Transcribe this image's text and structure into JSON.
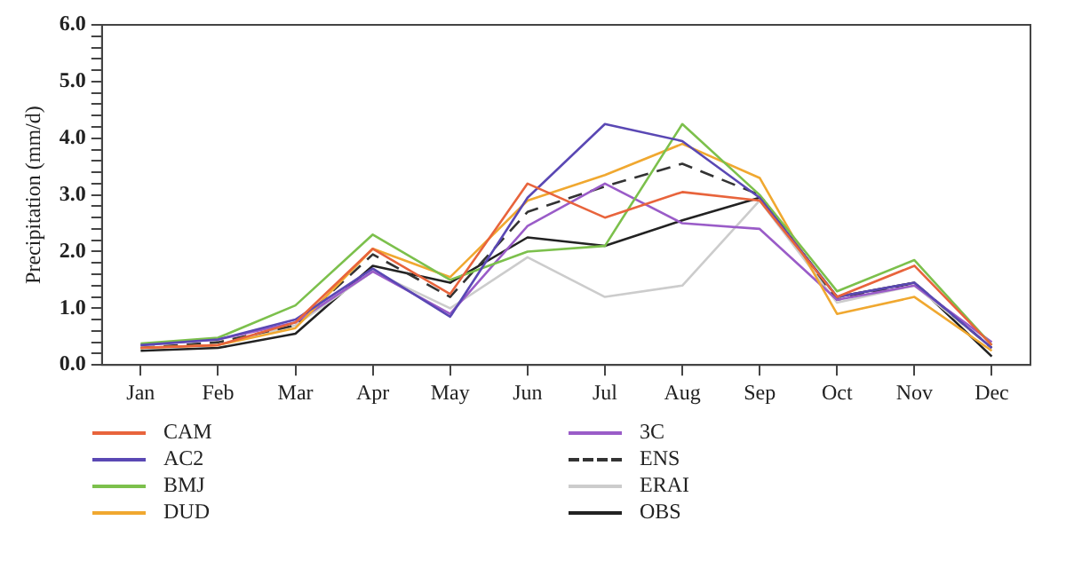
{
  "chart_data": {
    "type": "line",
    "ylabel": "Precipitation (mm/d)",
    "categories": [
      "Jan",
      "Feb",
      "Mar",
      "Apr",
      "May",
      "Jun",
      "Jul",
      "Aug",
      "Sep",
      "Oct",
      "Nov",
      "Dec"
    ],
    "ylim": [
      0,
      6
    ],
    "yticks": [
      {
        "value": 0,
        "label": "0.0"
      },
      {
        "value": 0.2,
        "label": null
      },
      {
        "value": 0.4,
        "label": null
      },
      {
        "value": 0.6,
        "label": null
      },
      {
        "value": 0.8,
        "label": null
      },
      {
        "value": 1,
        "label": "1.0"
      },
      {
        "value": 1.2,
        "label": null
      },
      {
        "value": 1.4,
        "label": null
      },
      {
        "value": 1.6,
        "label": null
      },
      {
        "value": 1.8,
        "label": null
      },
      {
        "value": 2,
        "label": "2.0"
      },
      {
        "value": 2.2,
        "label": null
      },
      {
        "value": 2.4,
        "label": null
      },
      {
        "value": 2.6,
        "label": null
      },
      {
        "value": 2.8,
        "label": null
      },
      {
        "value": 3,
        "label": "3.0"
      },
      {
        "value": 3.2,
        "label": null
      },
      {
        "value": 3.4,
        "label": null
      },
      {
        "value": 3.6,
        "label": null
      },
      {
        "value": 3.8,
        "label": null
      },
      {
        "value": 4,
        "label": "4.0"
      },
      {
        "value": 4.2,
        "label": null
      },
      {
        "value": 4.4,
        "label": null
      },
      {
        "value": 4.6,
        "label": null
      },
      {
        "value": 4.8,
        "label": null
      },
      {
        "value": 5,
        "label": "5.0"
      },
      {
        "value": 5.2,
        "label": null
      },
      {
        "value": 5.4,
        "label": null
      },
      {
        "value": 5.6,
        "label": null
      },
      {
        "value": 5.8,
        "label": null
      },
      {
        "value": 6,
        "label": "6.0"
      }
    ],
    "grid": false,
    "legend": "bottom",
    "marker": "none",
    "series": [
      {
        "name": "CAM",
        "color": "#e8643c",
        "values": [
          0.3,
          0.35,
          0.75,
          2.05,
          1.25,
          3.2,
          2.6,
          3.05,
          2.9,
          1.2,
          1.75,
          0.35
        ]
      },
      {
        "name": "AC2",
        "color": "#5a48b4",
        "values": [
          0.35,
          0.45,
          0.8,
          1.7,
          0.85,
          2.95,
          4.25,
          3.95,
          2.95,
          1.2,
          1.45,
          0.3
        ]
      },
      {
        "name": "BMJ",
        "color": "#7cc04c",
        "values": [
          0.38,
          0.48,
          1.05,
          2.3,
          1.5,
          2.0,
          2.1,
          4.25,
          3.0,
          1.3,
          1.85,
          0.35
        ]
      },
      {
        "name": "DUD",
        "color": "#f0a830",
        "values": [
          0.3,
          0.35,
          0.65,
          2.05,
          1.55,
          2.9,
          3.35,
          3.9,
          3.3,
          0.9,
          1.2,
          0.25
        ]
      },
      {
        "name": "3C",
        "color": "#9a5cc8",
        "values": [
          0.35,
          0.45,
          0.75,
          1.65,
          0.9,
          2.45,
          3.2,
          2.5,
          2.4,
          1.15,
          1.4,
          0.4
        ]
      },
      {
        "name": "ENS",
        "color": "#333333",
        "line_style": "dashed",
        "values": [
          0.3,
          0.4,
          0.7,
          1.95,
          1.2,
          2.7,
          3.15,
          3.55,
          3.0,
          1.15,
          1.45,
          0.3
        ]
      },
      {
        "name": "ERAI",
        "color": "#cccccc",
        "values": [
          0.3,
          0.35,
          0.7,
          1.65,
          1.0,
          1.9,
          1.2,
          1.4,
          2.9,
          1.1,
          1.4,
          0.3
        ]
      },
      {
        "name": "OBS",
        "color": "#222222",
        "values": [
          0.25,
          0.3,
          0.55,
          1.75,
          1.45,
          2.25,
          2.1,
          2.55,
          2.95,
          1.2,
          1.45,
          0.15
        ]
      }
    ]
  }
}
